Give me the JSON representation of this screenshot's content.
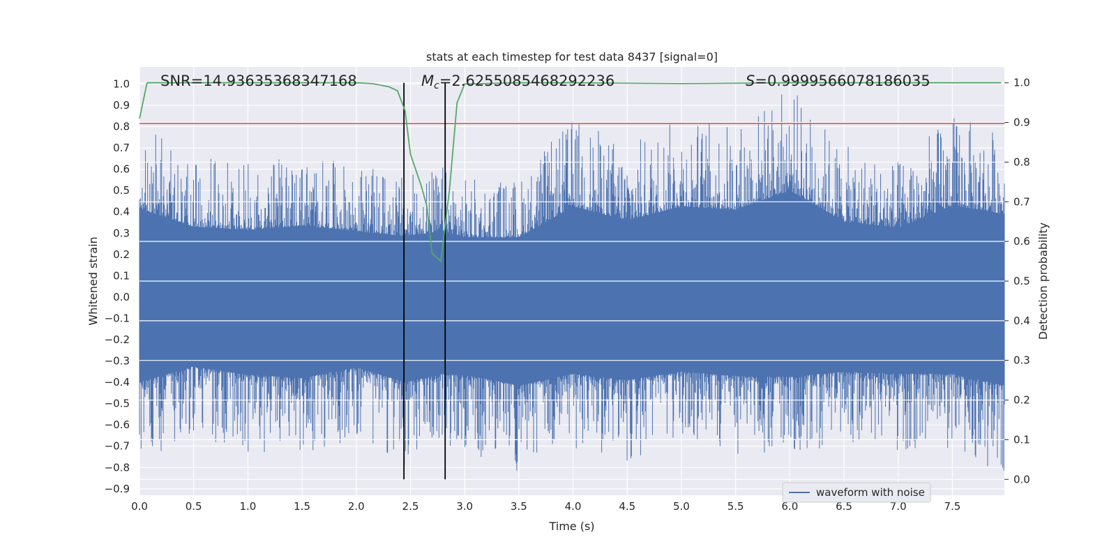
{
  "chart_data": {
    "type": "line",
    "title": "stats at each timestep for test data 8437 [signal=0]",
    "xlabel": "Time (s)",
    "ylabel_left": "Whitened strain",
    "ylabel_right": "Detection probability",
    "xlim": [
      0.0,
      7.98
    ],
    "ylim_left": [
      -0.93,
      1.08
    ],
    "ylim_right": [
      -0.04,
      1.04
    ],
    "x_ticks": [
      "0.0",
      "0.5",
      "1.0",
      "1.5",
      "2.0",
      "2.5",
      "3.0",
      "3.5",
      "4.0",
      "4.5",
      "5.0",
      "5.5",
      "6.0",
      "6.5",
      "7.0",
      "7.5"
    ],
    "y_left_ticks": [
      "1.0",
      "0.9",
      "0.8",
      "0.7",
      "0.6",
      "0.5",
      "0.4",
      "0.3",
      "0.2",
      "0.1",
      "0.0",
      "−0.1",
      "−0.2",
      "−0.3",
      "−0.4",
      "−0.5",
      "−0.6",
      "−0.7",
      "−0.8",
      "−0.9"
    ],
    "y_right_ticks": [
      "1.0",
      "0.9",
      "0.8",
      "0.7",
      "0.6",
      "0.5",
      "0.4",
      "0.3",
      "0.2",
      "0.1",
      "0.0"
    ],
    "grid": true,
    "legend_position": "lower-right",
    "annotations": {
      "snr": "SNR=14.93635368347168",
      "mc_symbol": "M",
      "mc_sub": "c",
      "mc_value": "=2.6255085468292236",
      "s_symbol": "S",
      "s_value": "=0.9999566078186035"
    },
    "series": [
      {
        "name": "waveform with noise",
        "axis": "left",
        "color": "#4c72b0",
        "envelope_x": [
          0.0,
          0.5,
          1.0,
          1.5,
          2.0,
          2.45,
          2.8,
          3.0,
          3.5,
          4.0,
          4.5,
          5.0,
          5.5,
          6.0,
          6.5,
          7.0,
          7.5,
          7.98
        ],
        "envelope_max": [
          0.83,
          0.66,
          0.63,
          0.67,
          0.62,
          0.57,
          0.62,
          0.56,
          0.56,
          0.85,
          0.72,
          0.85,
          0.82,
          1.0,
          0.71,
          0.65,
          0.86,
          0.78
        ],
        "envelope_min": [
          -0.8,
          -0.65,
          -0.73,
          -0.76,
          -0.66,
          -0.8,
          -0.72,
          -0.73,
          -0.83,
          -0.72,
          -0.78,
          -0.7,
          -0.74,
          -0.75,
          -0.7,
          -0.72,
          -0.72,
          -0.83
        ]
      },
      {
        "name": "",
        "axis": "right",
        "color": "#55a868",
        "x": [
          0.0,
          0.07,
          0.5,
          1.0,
          1.5,
          2.0,
          2.15,
          2.3,
          2.38,
          2.45,
          2.5,
          2.6,
          2.65,
          2.7,
          2.78,
          2.86,
          2.93,
          3.0,
          3.5,
          4.0,
          5.0,
          6.0,
          7.0,
          7.95
        ],
        "values": [
          0.91,
          1.0,
          1.0,
          1.0,
          1.0,
          1.0,
          0.998,
          0.99,
          0.98,
          0.93,
          0.82,
          0.74,
          0.69,
          0.57,
          0.55,
          0.73,
          0.95,
          0.997,
          1.0,
          1.0,
          0.998,
          1.0,
          1.0,
          1.0
        ]
      }
    ],
    "threshold_line": {
      "axis": "left",
      "value": 0.815,
      "color": "#c44e52"
    },
    "vertical_markers": [
      2.44,
      2.82
    ],
    "vertical_marker_color": "#000000"
  }
}
